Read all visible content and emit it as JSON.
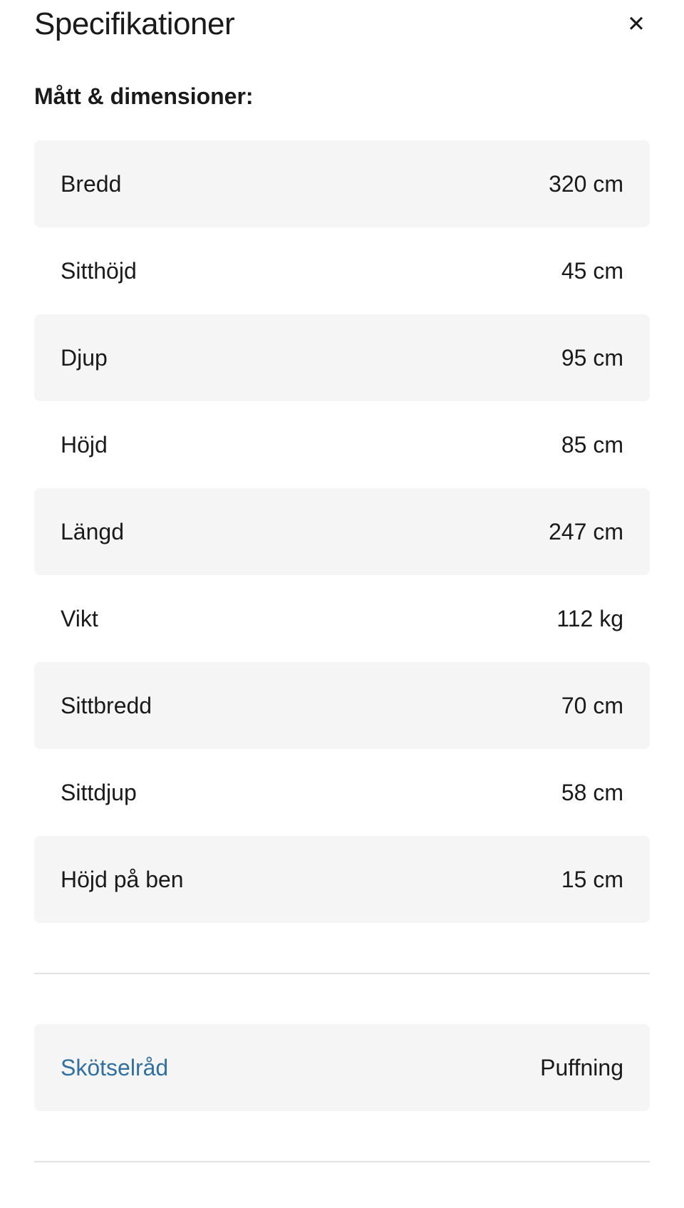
{
  "panel": {
    "title": "Specifikationer",
    "close_glyph": "✕"
  },
  "section": {
    "heading": "Mått & dimensioner:"
  },
  "spec_rows": [
    {
      "label": "Bredd",
      "value": "320 cm"
    },
    {
      "label": "Sitthöjd",
      "value": "45 cm"
    },
    {
      "label": "Djup",
      "value": "95 cm"
    },
    {
      "label": "Höjd",
      "value": "85 cm"
    },
    {
      "label": "Längd",
      "value": "247 cm"
    },
    {
      "label": "Vikt",
      "value": "112 kg"
    },
    {
      "label": "Sittbredd",
      "value": "70 cm"
    },
    {
      "label": "Sittdjup",
      "value": "58 cm"
    },
    {
      "label": "Höjd på ben",
      "value": "15 cm"
    }
  ],
  "care": {
    "label": "Skötselråd",
    "value": "Puffning"
  },
  "colors": {
    "text": "#1a1a1a",
    "row_shaded_bg": "#f5f5f5",
    "divider": "#e3e3e3",
    "link_blue": "#3170a0",
    "background": "#ffffff"
  }
}
